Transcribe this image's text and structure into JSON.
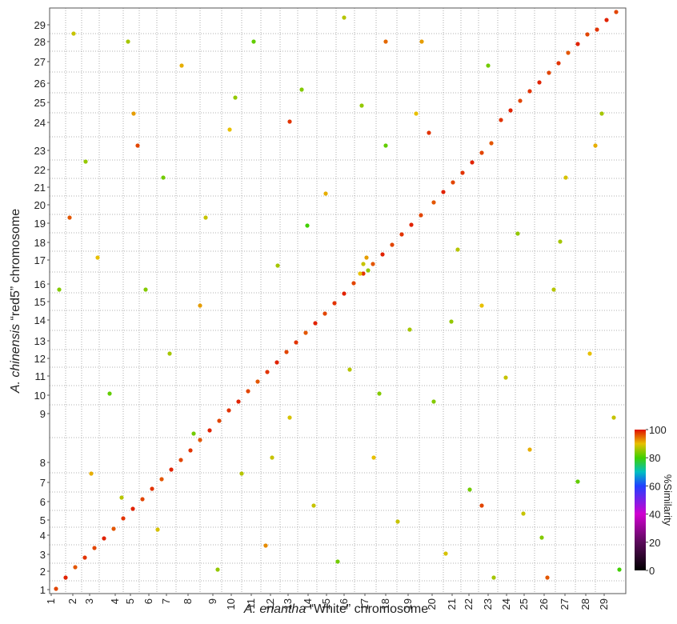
{
  "chart_data": {
    "type": "scatter",
    "x_label": {
      "italic": "A. eriantha",
      "rest": "“White” chromosome"
    },
    "y_label": {
      "italic": "A. chinensis",
      "rest": "“red5” chromosome"
    },
    "colorbar_label": "%Similarity",
    "xlim": [
      0,
      720
    ],
    "ylim": [
      0,
      732
    ],
    "xticks": [
      {
        "value": 2,
        "label": "1"
      },
      {
        "value": 29,
        "label": "2"
      },
      {
        "value": 50,
        "label": "3"
      },
      {
        "value": 82,
        "label": "4"
      },
      {
        "value": 101,
        "label": "5"
      },
      {
        "value": 124,
        "label": "6"
      },
      {
        "value": 146,
        "label": "7"
      },
      {
        "value": 173,
        "label": "8"
      },
      {
        "value": 204,
        "label": "9"
      },
      {
        "value": 227,
        "label": "10"
      },
      {
        "value": 252,
        "label": "11"
      },
      {
        "value": 276,
        "label": "12"
      },
      {
        "value": 298,
        "label": "13"
      },
      {
        "value": 323,
        "label": "14"
      },
      {
        "value": 346,
        "label": "15"
      },
      {
        "value": 368,
        "label": "16"
      },
      {
        "value": 394,
        "label": "17"
      },
      {
        "value": 420,
        "label": "18"
      },
      {
        "value": 448,
        "label": "19"
      },
      {
        "value": 478,
        "label": "20"
      },
      {
        "value": 503,
        "label": "21"
      },
      {
        "value": 524,
        "label": "22"
      },
      {
        "value": 548,
        "label": "23"
      },
      {
        "value": 571,
        "label": "24"
      },
      {
        "value": 593,
        "label": "25"
      },
      {
        "value": 618,
        "label": "26"
      },
      {
        "value": 644,
        "label": "27"
      },
      {
        "value": 670,
        "label": "28"
      },
      {
        "value": 693,
        "label": "29"
      }
    ],
    "yticks": [
      {
        "value": 5,
        "label": "1"
      },
      {
        "value": 28,
        "label": "2"
      },
      {
        "value": 49,
        "label": "3"
      },
      {
        "value": 73,
        "label": "4"
      },
      {
        "value": 92,
        "label": "5"
      },
      {
        "value": 115,
        "label": "6"
      },
      {
        "value": 139,
        "label": "7"
      },
      {
        "value": 164,
        "label": "8"
      },
      {
        "value": 225,
        "label": "9"
      },
      {
        "value": 248,
        "label": "10"
      },
      {
        "value": 272,
        "label": "11"
      },
      {
        "value": 294,
        "label": "12"
      },
      {
        "value": 316,
        "label": "13"
      },
      {
        "value": 342,
        "label": "14"
      },
      {
        "value": 365,
        "label": "15"
      },
      {
        "value": 387,
        "label": "16"
      },
      {
        "value": 417,
        "label": "17"
      },
      {
        "value": 439,
        "label": "18"
      },
      {
        "value": 463,
        "label": "19"
      },
      {
        "value": 486,
        "label": "20"
      },
      {
        "value": 508,
        "label": "21"
      },
      {
        "value": 530,
        "label": "22"
      },
      {
        "value": 554,
        "label": "23"
      },
      {
        "value": 589,
        "label": "24"
      },
      {
        "value": 614,
        "label": "25"
      },
      {
        "value": 638,
        "label": "26"
      },
      {
        "value": 665,
        "label": "27"
      },
      {
        "value": 690,
        "label": "28"
      },
      {
        "value": 711,
        "label": "29"
      }
    ],
    "xgrid": [
      20,
      40,
      62,
      92,
      112,
      134,
      158,
      188,
      215,
      240,
      264,
      288,
      310,
      334,
      358,
      381,
      408,
      434,
      462,
      492,
      514,
      536,
      560,
      582,
      606,
      632,
      657,
      682
    ],
    "ygrid": [
      16,
      38,
      61,
      83,
      104,
      127,
      151,
      195,
      236,
      260,
      283,
      305,
      329,
      354,
      376,
      402,
      428,
      451,
      474,
      497,
      519,
      542,
      571,
      601,
      626,
      652,
      678,
      700
    ],
    "colorbar_lim": [
      0,
      100
    ],
    "colorbar_ticks": [
      0,
      20,
      40,
      60,
      80,
      100
    ],
    "colormap": [
      {
        "value": 0,
        "color": "#000000"
      },
      {
        "value": 20,
        "color": "#5a0a5a"
      },
      {
        "value": 40,
        "color": "#d000d0"
      },
      {
        "value": 60,
        "color": "#2040ff"
      },
      {
        "value": 70,
        "color": "#00c0c0"
      },
      {
        "value": 80,
        "color": "#40d000"
      },
      {
        "value": 90,
        "color": "#e8c000"
      },
      {
        "value": 100,
        "color": "#e01000"
      }
    ],
    "series": [
      {
        "x": [
          8,
          20,
          32,
          44,
          56,
          68,
          80,
          92,
          104,
          116,
          128,
          140,
          152,
          164,
          176,
          188,
          200,
          212,
          224,
          236,
          248,
          260,
          272,
          284,
          296,
          308,
          320,
          332,
          344,
          356,
          368,
          380,
          392,
          404,
          416,
          428,
          440,
          452,
          464,
          474,
          480,
          492,
          504,
          516,
          528,
          540,
          552,
          564,
          576,
          588,
          600,
          612,
          624,
          636,
          648,
          660,
          672,
          684,
          696,
          708,
          388,
          392,
          398,
          396,
          30,
          45,
          60,
          75,
          90,
          105,
          120,
          135,
          150,
          165,
          180,
          195,
          210,
          225,
          240,
          255,
          270,
          285,
          300,
          315,
          330,
          345,
          360,
          375,
          390,
          405,
          420,
          435,
          450,
          465,
          480,
          495,
          510,
          525,
          540,
          555,
          570,
          585,
          600,
          615,
          630,
          645,
          660,
          675,
          690,
          705,
          12,
          52,
          98,
          142,
          188,
          232,
          278,
          322,
          368,
          412,
          458,
          502,
          548,
          592,
          638,
          682,
          712,
          25,
          110,
          300,
          420,
          540,
          622
        ],
        "y": [
          6,
          20,
          33,
          45,
          57,
          69,
          81,
          94,
          106,
          118,
          131,
          143,
          155,
          167,
          179,
          192,
          204,
          216,
          229,
          240,
          253,
          265,
          277,
          289,
          302,
          314,
          326,
          338,
          350,
          363,
          375,
          388,
          400,
          412,
          424,
          436,
          449,
          461,
          473,
          576,
          489,
          502,
          514,
          526,
          539,
          551,
          563,
          592,
          604,
          616,
          628,
          639,
          651,
          663,
          676,
          687,
          699,
          705,
          717,
          727,
          400,
          412,
          404,
          420,
          700,
          540,
          420,
          250,
          120,
          600,
          380,
          80,
          300,
          660,
          200,
          470,
          30,
          580,
          150,
          690,
          60,
          410,
          220,
          630,
          110,
          500,
          40,
          280,
          610,
          170,
          560,
          90,
          330,
          690,
          240,
          50,
          430,
          130,
          360,
          20,
          270,
          450,
          180,
          70,
          380,
          520,
          140,
          300,
          600,
          220,
          380,
          150,
          690,
          520,
          360,
          620,
          170,
          460,
          720,
          250,
          600,
          340,
          660,
          100,
          440,
          560,
          30,
          470,
          560,
          590,
          690,
          110,
          20
        ],
        "similarity": [
          97,
          99,
          96,
          98,
          97,
          99,
          96,
          98,
          99,
          97,
          98,
          96,
          99,
          97,
          98,
          96,
          99,
          97,
          98,
          99,
          97,
          96,
          98,
          99,
          97,
          98,
          96,
          99,
          97,
          98,
          99,
          97,
          98,
          96,
          99,
          97,
          98,
          99,
          97,
          98,
          96,
          99,
          97,
          98,
          99,
          97,
          96,
          98,
          99,
          97,
          98,
          99,
          97,
          98,
          96,
          99,
          97,
          98,
          99,
          97,
          90,
          88,
          85,
          92,
          88,
          85,
          90,
          82,
          87,
          92,
          84,
          89,
          86,
          91,
          83,
          88,
          85,
          90,
          87,
          82,
          93,
          86,
          89,
          84,
          88,
          91,
          83,
          87,
          85,
          90,
          82,
          88,
          86,
          92,
          84,
          89,
          87,
          83,
          90,
          86,
          88,
          85,
          91,
          84,
          87,
          89,
          82,
          90,
          86,
          88,
          84,
          91,
          86,
          83,
          92,
          85,
          88,
          80,
          87,
          84,
          90,
          85,
          83,
          88,
          86,
          91,
          80,
          96,
          97,
          98,
          95,
          97,
          96
        ]
      }
    ]
  }
}
